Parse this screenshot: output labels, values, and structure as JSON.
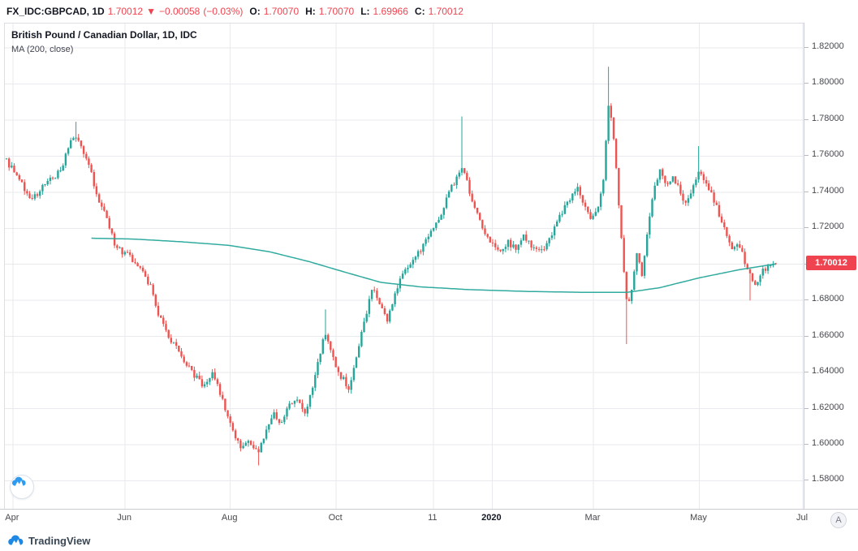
{
  "header": {
    "symbol_interval": "FX_IDC:GBPCAD, 1D",
    "last_price": "1.70012",
    "direction": "▼",
    "change": "−0.00058",
    "change_pct": "(−0.03%)",
    "o_label": "O:",
    "o_value": "1.70070",
    "h_label": "H:",
    "h_value": "1.70070",
    "l_label": "L:",
    "l_value": "1.69966",
    "c_label": "C:",
    "c_value": "1.70012"
  },
  "legend": {
    "title": "British Pound / Canadian Dollar, 1D, IDC",
    "ma": "MA (200, close)"
  },
  "price_axis": {
    "current_price_label": "1.70012"
  },
  "time_axis": {
    "a_button": "A"
  },
  "footer": {
    "brand": "TradingView"
  },
  "chart_data": {
    "type": "candlestick",
    "symbol": "FX_IDC:GBPCAD",
    "title": "British Pound / Canadian Dollar, 1D, IDC",
    "interval": "1D",
    "exchange": "IDC",
    "grid": true,
    "legend_position": "top-left",
    "y_domain": [
      1.564,
      1.8335
    ],
    "y_ticks": [
      1.82,
      1.8,
      1.78,
      1.76,
      1.74,
      1.72,
      1.7,
      1.68,
      1.66,
      1.64,
      1.62,
      1.6,
      1.58
    ],
    "y_tick_labels": [
      "1.82000",
      "1.80000",
      "1.78000",
      "1.76000",
      "1.74000",
      "1.72000",
      "1.70000",
      "1.68000",
      "1.66000",
      "1.64000",
      "1.62000",
      "1.60000",
      "1.58000"
    ],
    "x_labels": [
      {
        "text": "Apr",
        "t": 0.008
      },
      {
        "text": "Jun",
        "t": 0.149
      },
      {
        "text": "Aug",
        "t": 0.281
      },
      {
        "text": "Oct",
        "t": 0.414
      },
      {
        "text": "11",
        "t": 0.536
      },
      {
        "text": "2020",
        "t": 0.61,
        "major": true
      },
      {
        "text": "Mar",
        "t": 0.737
      },
      {
        "text": "May",
        "t": 0.87
      },
      {
        "text": "Jul",
        "t": 1.0
      }
    ],
    "bars": 300,
    "t_last": 0.966,
    "last_bar": {
      "o": 1.7007,
      "h": 1.7007,
      "l": 1.69966,
      "c": 1.70012
    },
    "close_anchors": [
      [
        0.0,
        1.757
      ],
      [
        0.01,
        1.751
      ],
      [
        0.022,
        1.742
      ],
      [
        0.032,
        1.736
      ],
      [
        0.045,
        1.743
      ],
      [
        0.058,
        1.748
      ],
      [
        0.068,
        1.752
      ],
      [
        0.08,
        1.768
      ],
      [
        0.088,
        1.772
      ],
      [
        0.096,
        1.763
      ],
      [
        0.105,
        1.752
      ],
      [
        0.115,
        1.737
      ],
      [
        0.124,
        1.729
      ],
      [
        0.134,
        1.713
      ],
      [
        0.143,
        1.708
      ],
      [
        0.152,
        1.705
      ],
      [
        0.162,
        1.701
      ],
      [
        0.172,
        1.697
      ],
      [
        0.182,
        1.686
      ],
      [
        0.192,
        1.671
      ],
      [
        0.202,
        1.661
      ],
      [
        0.212,
        1.654
      ],
      [
        0.222,
        1.648
      ],
      [
        0.232,
        1.641
      ],
      [
        0.245,
        1.633
      ],
      [
        0.258,
        1.639
      ],
      [
        0.268,
        1.629
      ],
      [
        0.276,
        1.617
      ],
      [
        0.286,
        1.604
      ],
      [
        0.296,
        1.598
      ],
      [
        0.306,
        1.602
      ],
      [
        0.315,
        1.595
      ],
      [
        0.325,
        1.606
      ],
      [
        0.335,
        1.618
      ],
      [
        0.345,
        1.611
      ],
      [
        0.355,
        1.622
      ],
      [
        0.365,
        1.626
      ],
      [
        0.375,
        1.617
      ],
      [
        0.385,
        1.633
      ],
      [
        0.394,
        1.652
      ],
      [
        0.401,
        1.663
      ],
      [
        0.41,
        1.648
      ],
      [
        0.42,
        1.638
      ],
      [
        0.43,
        1.632
      ],
      [
        0.44,
        1.65
      ],
      [
        0.45,
        1.669
      ],
      [
        0.459,
        1.687
      ],
      [
        0.468,
        1.678
      ],
      [
        0.478,
        1.668
      ],
      [
        0.488,
        1.684
      ],
      [
        0.497,
        1.694
      ],
      [
        0.508,
        1.701
      ],
      [
        0.518,
        1.707
      ],
      [
        0.528,
        1.714
      ],
      [
        0.538,
        1.721
      ],
      [
        0.548,
        1.731
      ],
      [
        0.558,
        1.742
      ],
      [
        0.567,
        1.749
      ],
      [
        0.573,
        1.753
      ],
      [
        0.58,
        1.743
      ],
      [
        0.59,
        1.728
      ],
      [
        0.6,
        1.718
      ],
      [
        0.61,
        1.712
      ],
      [
        0.62,
        1.706
      ],
      [
        0.63,
        1.712
      ],
      [
        0.64,
        1.708
      ],
      [
        0.65,
        1.716
      ],
      [
        0.66,
        1.71
      ],
      [
        0.67,
        1.706
      ],
      [
        0.68,
        1.713
      ],
      [
        0.69,
        1.722
      ],
      [
        0.7,
        1.731
      ],
      [
        0.71,
        1.739
      ],
      [
        0.716,
        1.743
      ],
      [
        0.725,
        1.733
      ],
      [
        0.734,
        1.723
      ],
      [
        0.742,
        1.73
      ],
      [
        0.75,
        1.749
      ],
      [
        0.756,
        1.789
      ],
      [
        0.762,
        1.773
      ],
      [
        0.768,
        1.739
      ],
      [
        0.774,
        1.703
      ],
      [
        0.78,
        1.673
      ],
      [
        0.786,
        1.689
      ],
      [
        0.792,
        1.709
      ],
      [
        0.798,
        1.693
      ],
      [
        0.804,
        1.716
      ],
      [
        0.81,
        1.733
      ],
      [
        0.816,
        1.746
      ],
      [
        0.822,
        1.753
      ],
      [
        0.83,
        1.743
      ],
      [
        0.838,
        1.749
      ],
      [
        0.846,
        1.739
      ],
      [
        0.854,
        1.733
      ],
      [
        0.862,
        1.743
      ],
      [
        0.87,
        1.753
      ],
      [
        0.878,
        1.746
      ],
      [
        0.886,
        1.739
      ],
      [
        0.894,
        1.729
      ],
      [
        0.902,
        1.719
      ],
      [
        0.91,
        1.709
      ],
      [
        0.918,
        1.713
      ],
      [
        0.926,
        1.703
      ],
      [
        0.934,
        1.693
      ],
      [
        0.942,
        1.688
      ],
      [
        0.95,
        1.696
      ],
      [
        0.958,
        1.7
      ],
      [
        0.966,
        1.70012
      ]
    ],
    "extremes": [
      {
        "t": 0.088,
        "high": 1.779
      },
      {
        "t": 0.315,
        "low": 1.5885
      },
      {
        "t": 0.401,
        "high": 1.675
      },
      {
        "t": 0.573,
        "high": 1.782
      },
      {
        "t": 0.756,
        "high": 1.8095
      },
      {
        "t": 0.78,
        "low": 1.6558
      },
      {
        "t": 0.87,
        "high": 1.7655
      },
      {
        "t": 0.934,
        "low": 1.68
      }
    ],
    "ma200": {
      "name": "MA (200, close)",
      "period": 200,
      "source": "close",
      "start_t": 0.105,
      "anchors": [
        [
          0.105,
          1.7145
        ],
        [
          0.16,
          1.714
        ],
        [
          0.22,
          1.7125
        ],
        [
          0.28,
          1.7105
        ],
        [
          0.33,
          1.707
        ],
        [
          0.38,
          1.7015
        ],
        [
          0.43,
          1.695
        ],
        [
          0.47,
          1.69
        ],
        [
          0.52,
          1.6875
        ],
        [
          0.58,
          1.686
        ],
        [
          0.65,
          1.685
        ],
        [
          0.72,
          1.6845
        ],
        [
          0.78,
          1.6845
        ],
        [
          0.82,
          1.687
        ],
        [
          0.87,
          1.6925
        ],
        [
          0.92,
          1.697
        ],
        [
          0.966,
          1.7002
        ]
      ]
    },
    "colors": {
      "up": "#26a69a",
      "down": "#ef5350",
      "ma": "#26a69a",
      "grid": "#e8eaee",
      "axis_text": "#47494e",
      "label_bg": "#ef4450",
      "header_value": "#ef4450"
    }
  }
}
